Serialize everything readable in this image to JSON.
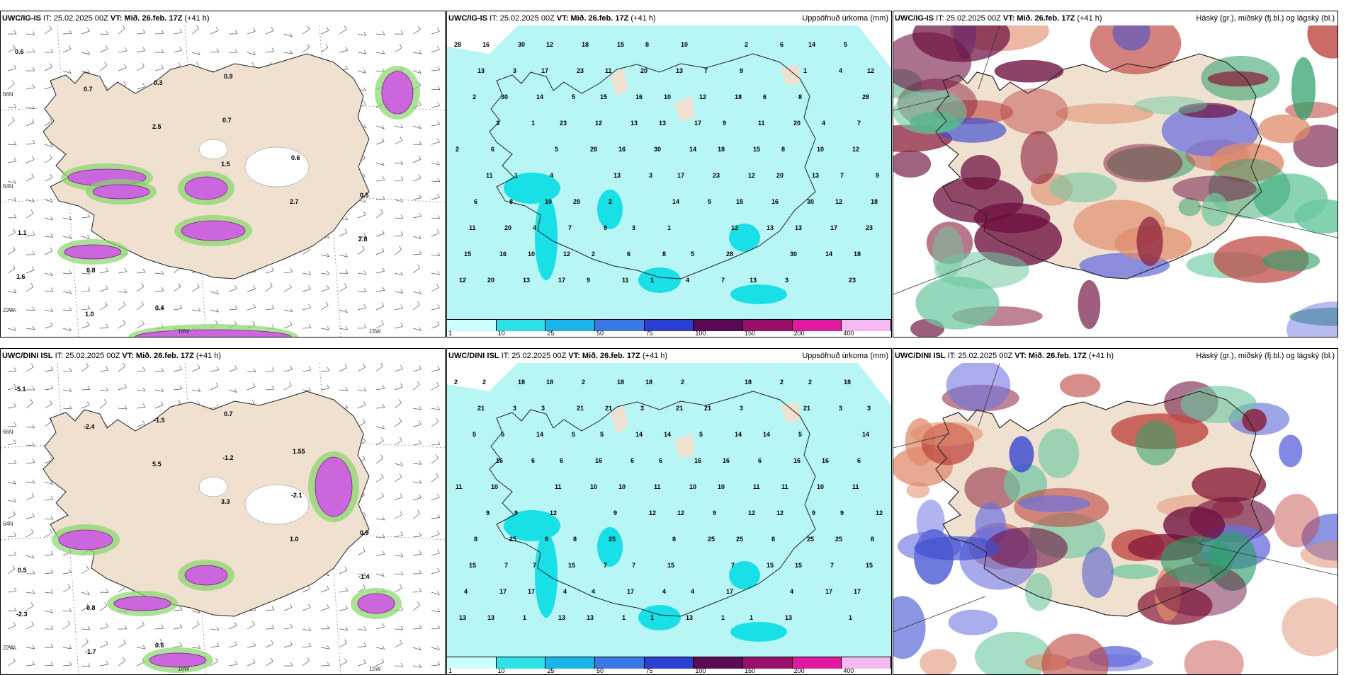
{
  "colors": {
    "land": "#efe0cf",
    "precip": "#b8f5f5",
    "precip_dark": "#19e0e6",
    "snow": "#cc66dd",
    "green": "#86d66a"
  },
  "panels": [
    {
      "id": "p1",
      "model": "UWC/IG-IS",
      "it": "IT: 25.02.2025 00Z",
      "vt": "VT: Mið. 26.feb. 17Z",
      "lead": "(+41 h)",
      "right_title": "",
      "values": [
        "0.6",
        "0.7",
        "2.5",
        "1.5",
        "2.7",
        "2.8",
        "1.6",
        "1.0",
        "0.3",
        "0.7",
        "0.6",
        "0.5",
        "1.1",
        "0.8",
        "0.4",
        "0.9"
      ]
    },
    {
      "id": "p2",
      "model": "UWC/IG-IS",
      "it": "IT: 25.02.2025 00Z",
      "vt": "VT: Mið. 26.feb. 17Z",
      "lead": "(+41 h)",
      "right_title": "Uppsöfnuð úrkoma (mm)",
      "values": [
        "28",
        "3",
        "5",
        "13",
        "14",
        "12",
        "30",
        "23",
        "16",
        "17",
        "15",
        "13",
        "18",
        "20",
        "12",
        "11",
        "10",
        "9",
        "8",
        "7",
        "6",
        "4",
        "2",
        "1"
      ]
    },
    {
      "id": "p3",
      "model": "UWC/IG-IS",
      "it": "IT: 25.02.2025 00Z",
      "vt": "VT: Mið. 26.feb. 17Z",
      "lead": "(+41 h)",
      "right_title": "Háský (gr.), miðský (fj.bl.) og lágský (bl.)",
      "values": []
    },
    {
      "id": "p4",
      "model": "UWC/DINI ISL",
      "it": "IT: 25.02.2025 00Z",
      "vt": "VT: Mið. 26.feb. 17Z",
      "lead": "(+41 h)",
      "right_title": "",
      "values": [
        "-5.1",
        "-2.4",
        "5.5",
        "3.3",
        "1.0",
        "-1.4",
        "-2.3",
        "-1.7",
        "-1.5",
        "-1.2",
        "-2.1",
        "0.9",
        "0.5",
        "0.8",
        "0.6",
        "0.7",
        "1.55"
      ]
    },
    {
      "id": "p5",
      "model": "UWC/DINI ISL",
      "it": "IT: 25.02.2025 00Z",
      "vt": "VT: Mið. 26.feb. 17Z",
      "lead": "(+41 h)",
      "right_title": "Uppsöfnuð úrkoma (mm)",
      "values": [
        "2",
        "3",
        "5",
        "6",
        "10",
        "12",
        "25",
        "15",
        "17",
        "13",
        "18",
        "21",
        "14",
        "16",
        "11",
        "9",
        "8",
        "7",
        "4",
        "1"
      ]
    },
    {
      "id": "p6",
      "model": "UWC/DINI ISL",
      "it": "IT: 25.02.2025 00Z",
      "vt": "VT: Mið. 26.feb. 17Z",
      "lead": "(+41 h)",
      "right_title": "Háský (gr.), miðský (fj.bl.) og lágský (bl.)",
      "values": []
    }
  ],
  "axis_labels": [
    "66N",
    "64N",
    "22W",
    "18W",
    "15W"
  ],
  "colorbar": {
    "ticks": [
      "1",
      "10",
      "25",
      "50",
      "75",
      "100",
      "150",
      "200",
      "400"
    ],
    "colors": [
      "#ccffff",
      "#2de1e6",
      "#1ab4e8",
      "#3a78e6",
      "#2b3fd0",
      "#5a0a55",
      "#98106a",
      "#e01aa0",
      "#f5b8f0"
    ]
  }
}
